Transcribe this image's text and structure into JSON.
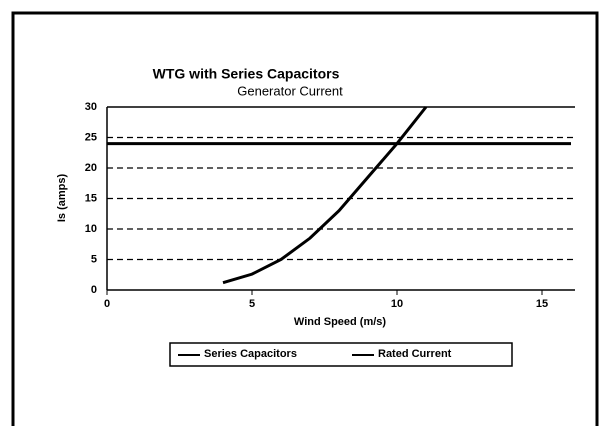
{
  "chart_data": {
    "type": "line",
    "title": "WTG with Series Capacitors",
    "subtitle": "Generator Current",
    "xlabel": "Wind Speed (m/s)",
    "ylabel": "Is (amps)",
    "series": [
      {
        "name": "Series Capacitors",
        "color": "#000000",
        "x": [
          4,
          5,
          6,
          7,
          8,
          9,
          10,
          11
        ],
        "values": [
          1.2,
          2.6,
          5,
          8.5,
          13,
          18.5,
          24,
          30
        ]
      },
      {
        "name": "Rated Current",
        "color": "#000000",
        "x": [
          0,
          16
        ],
        "values": [
          24,
          24
        ]
      }
    ],
    "xlim": [
      0,
      16
    ],
    "xticks": [
      0,
      5,
      10,
      15
    ],
    "ylim": [
      0,
      30
    ],
    "yticks": [
      0,
      5,
      10,
      15,
      20,
      25,
      30
    ],
    "grid": true,
    "legend": "bottom"
  }
}
